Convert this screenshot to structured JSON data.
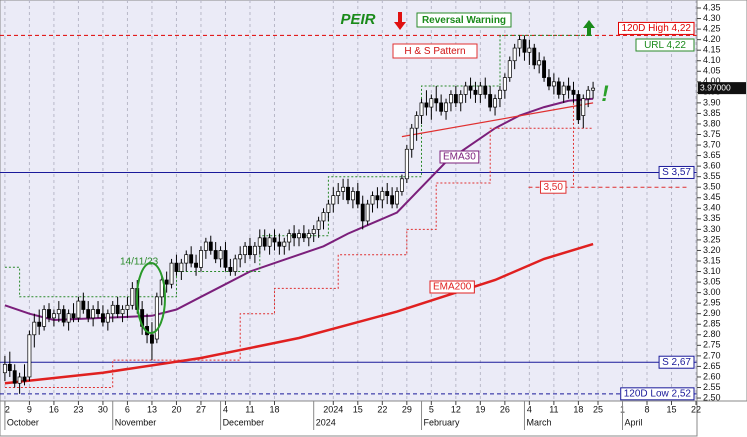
{
  "chart_data": {
    "type": "candlestick",
    "title": "PEIR",
    "xlim": [
      -1,
      141.2
    ],
    "ylim": [
      2.486,
      4.388
    ],
    "grid": "x",
    "up_color": "#ffffff",
    "down_color": "#000000",
    "xticks": [
      {
        "value": 0,
        "label": "2"
      },
      {
        "value": 5,
        "label": "9"
      },
      {
        "value": 10,
        "label": "16"
      },
      {
        "value": 15,
        "label": "23"
      },
      {
        "value": 20,
        "label": "30"
      },
      {
        "value": 25,
        "label": "6"
      },
      {
        "value": 30,
        "label": "13"
      },
      {
        "value": 35,
        "label": "20"
      },
      {
        "value": 40,
        "label": "27"
      },
      {
        "value": 45,
        "label": "4"
      },
      {
        "value": 50,
        "label": "11"
      },
      {
        "value": 55,
        "label": "18"
      },
      {
        "value": 67,
        "label": "2024"
      },
      {
        "value": 72,
        "label": "15"
      },
      {
        "value": 77,
        "label": "22"
      },
      {
        "value": 82,
        "label": "29"
      },
      {
        "value": 87,
        "label": "5"
      },
      {
        "value": 92,
        "label": "12"
      },
      {
        "value": 97,
        "label": "19"
      },
      {
        "value": 102,
        "label": "26"
      },
      {
        "value": 107,
        "label": "4"
      },
      {
        "value": 112,
        "label": "11"
      },
      {
        "value": 117,
        "label": "18"
      },
      {
        "value": 121,
        "label": "25"
      },
      {
        "value": 126,
        "label": "1"
      },
      {
        "value": 131,
        "label": "8"
      },
      {
        "value": 136,
        "label": "15"
      },
      {
        "value": 141,
        "label": "22"
      }
    ],
    "months": [
      {
        "value": 0,
        "label": "October"
      },
      {
        "value": 22,
        "label": "November"
      },
      {
        "value": 44,
        "label": "December"
      },
      {
        "value": 63,
        "label": "2024"
      },
      {
        "value": 85,
        "label": "February"
      },
      {
        "value": 106,
        "label": "March"
      },
      {
        "value": 126,
        "label": "April"
      }
    ],
    "yticks": [
      {
        "value": 2.5,
        "label": "2.50"
      },
      {
        "value": 2.55,
        "label": "2.55"
      },
      {
        "value": 2.6,
        "label": "2.60"
      },
      {
        "value": 2.65,
        "label": "2.65"
      },
      {
        "value": 2.7,
        "label": "2.70"
      },
      {
        "value": 2.75,
        "label": "2.75"
      },
      {
        "value": 2.8,
        "label": "2.80"
      },
      {
        "value": 2.85,
        "label": "2.85"
      },
      {
        "value": 2.9,
        "label": "2.90"
      },
      {
        "value": 2.95,
        "label": "2.95"
      },
      {
        "value": 3.0,
        "label": "3.00"
      },
      {
        "value": 3.05,
        "label": "3.05"
      },
      {
        "value": 3.1,
        "label": "3.10"
      },
      {
        "value": 3.15,
        "label": "3.15"
      },
      {
        "value": 3.2,
        "label": "3.20"
      },
      {
        "value": 3.25,
        "label": "3.25"
      },
      {
        "value": 3.3,
        "label": "3.30"
      },
      {
        "value": 3.35,
        "label": "3.35"
      },
      {
        "value": 3.4,
        "label": "3.40"
      },
      {
        "value": 3.45,
        "label": "3.45"
      },
      {
        "value": 3.5,
        "label": "3.50"
      },
      {
        "value": 3.55,
        "label": "3.55"
      },
      {
        "value": 3.6,
        "label": "3.60"
      },
      {
        "value": 3.65,
        "label": "3.65"
      },
      {
        "value": 3.7,
        "label": "3.70"
      },
      {
        "value": 3.75,
        "label": "3.75"
      },
      {
        "value": 3.8,
        "label": "3.80"
      },
      {
        "value": 3.85,
        "label": "3.85"
      },
      {
        "value": 3.9,
        "label": "3.90"
      },
      {
        "value": 3.95,
        "label": "3.95"
      },
      {
        "value": 4.0,
        "label": "4.00"
      },
      {
        "value": 4.05,
        "label": "4.05"
      },
      {
        "value": 4.1,
        "label": "4.10"
      },
      {
        "value": 4.15,
        "label": "4.15"
      },
      {
        "value": 4.2,
        "label": "4.20"
      },
      {
        "value": 4.25,
        "label": "4.25"
      },
      {
        "value": 4.3,
        "label": "4.30"
      },
      {
        "value": 4.35,
        "label": "4.35"
      }
    ],
    "candles": [
      [
        2.62,
        2.7,
        2.58,
        2.66
      ],
      [
        2.66,
        2.72,
        2.6,
        2.63
      ],
      [
        2.63,
        2.66,
        2.55,
        2.57
      ],
      [
        2.57,
        2.62,
        2.52,
        2.6
      ],
      [
        2.6,
        2.66,
        2.56,
        2.58
      ],
      [
        2.6,
        2.82,
        2.58,
        2.8
      ],
      [
        2.8,
        2.9,
        2.74,
        2.86
      ],
      [
        2.86,
        2.92,
        2.8,
        2.84
      ],
      [
        2.84,
        2.94,
        2.82,
        2.92
      ],
      [
        2.92,
        2.95,
        2.86,
        2.88
      ],
      [
        2.88,
        2.92,
        2.84,
        2.9
      ],
      [
        2.9,
        2.96,
        2.86,
        2.92
      ],
      [
        2.92,
        2.94,
        2.84,
        2.86
      ],
      [
        2.86,
        2.92,
        2.82,
        2.9
      ],
      [
        2.9,
        2.95,
        2.86,
        2.88
      ],
      [
        2.88,
        2.98,
        2.86,
        2.96
      ],
      [
        2.96,
        3.0,
        2.9,
        2.92
      ],
      [
        2.92,
        2.96,
        2.86,
        2.88
      ],
      [
        2.88,
        2.94,
        2.84,
        2.92
      ],
      [
        2.92,
        2.96,
        2.88,
        2.9
      ],
      [
        2.9,
        2.94,
        2.84,
        2.86
      ],
      [
        2.86,
        2.92,
        2.82,
        2.9
      ],
      [
        2.9,
        2.96,
        2.86,
        2.94
      ],
      [
        2.94,
        2.98,
        2.88,
        2.9
      ],
      [
        2.9,
        2.94,
        2.86,
        2.92
      ],
      [
        2.92,
        2.98,
        2.88,
        2.94
      ],
      [
        2.94,
        3.05,
        2.92,
        3.02
      ],
      [
        3.02,
        3.06,
        2.9,
        2.92
      ],
      [
        2.92,
        2.96,
        2.8,
        2.84
      ],
      [
        2.84,
        2.9,
        2.76,
        2.8
      ],
      [
        2.8,
        2.86,
        2.68,
        2.76
      ],
      [
        2.78,
        3.0,
        2.76,
        2.98
      ],
      [
        2.98,
        3.08,
        2.94,
        3.06
      ],
      [
        3.06,
        3.1,
        3.0,
        3.04
      ],
      [
        3.04,
        3.16,
        3.02,
        3.14
      ],
      [
        3.14,
        3.18,
        3.08,
        3.1
      ],
      [
        3.1,
        3.16,
        3.06,
        3.14
      ],
      [
        3.14,
        3.2,
        3.1,
        3.18
      ],
      [
        3.18,
        3.22,
        3.12,
        3.14
      ],
      [
        3.14,
        3.18,
        3.08,
        3.12
      ],
      [
        3.12,
        3.22,
        3.1,
        3.2
      ],
      [
        3.2,
        3.26,
        3.16,
        3.24
      ],
      [
        3.24,
        3.27,
        3.18,
        3.2
      ],
      [
        3.2,
        3.24,
        3.14,
        3.16
      ],
      [
        3.16,
        3.22,
        3.12,
        3.2
      ],
      [
        3.2,
        3.24,
        3.1,
        3.12
      ],
      [
        3.12,
        3.16,
        3.08,
        3.1
      ],
      [
        3.1,
        3.18,
        3.08,
        3.16
      ],
      [
        3.16,
        3.22,
        3.12,
        3.18
      ],
      [
        3.18,
        3.24,
        3.14,
        3.22
      ],
      [
        3.22,
        3.26,
        3.16,
        3.18
      ],
      [
        3.18,
        3.24,
        3.14,
        3.22
      ],
      [
        3.22,
        3.3,
        3.18,
        3.26
      ],
      [
        3.26,
        3.3,
        3.2,
        3.22
      ],
      [
        3.22,
        3.28,
        3.18,
        3.26
      ],
      [
        3.26,
        3.3,
        3.2,
        3.24
      ],
      [
        3.24,
        3.28,
        3.18,
        3.22
      ],
      [
        3.22,
        3.26,
        3.18,
        3.24
      ],
      [
        3.24,
        3.3,
        3.2,
        3.28
      ],
      [
        3.28,
        3.32,
        3.22,
        3.26
      ],
      [
        3.26,
        3.3,
        3.22,
        3.28
      ],
      [
        3.28,
        3.32,
        3.24,
        3.26
      ],
      [
        3.26,
        3.3,
        3.22,
        3.28
      ],
      [
        3.28,
        3.32,
        3.24,
        3.3
      ],
      [
        3.3,
        3.36,
        3.26,
        3.34
      ],
      [
        3.34,
        3.4,
        3.3,
        3.38
      ],
      [
        3.38,
        3.44,
        3.34,
        3.42
      ],
      [
        3.42,
        3.5,
        3.38,
        3.46
      ],
      [
        3.46,
        3.52,
        3.42,
        3.48
      ],
      [
        3.48,
        3.54,
        3.44,
        3.5
      ],
      [
        3.5,
        3.54,
        3.42,
        3.44
      ],
      [
        3.44,
        3.5,
        3.4,
        3.48
      ],
      [
        3.48,
        3.52,
        3.4,
        3.42
      ],
      [
        3.42,
        3.46,
        3.3,
        3.34
      ],
      [
        3.34,
        3.44,
        3.32,
        3.42
      ],
      [
        3.42,
        3.48,
        3.38,
        3.46
      ],
      [
        3.46,
        3.5,
        3.4,
        3.44
      ],
      [
        3.44,
        3.5,
        3.4,
        3.48
      ],
      [
        3.48,
        3.52,
        3.42,
        3.46
      ],
      [
        3.46,
        3.5,
        3.4,
        3.42
      ],
      [
        3.42,
        3.5,
        3.4,
        3.48
      ],
      [
        3.48,
        3.56,
        3.46,
        3.54
      ],
      [
        3.54,
        3.7,
        3.52,
        3.68
      ],
      [
        3.68,
        3.8,
        3.64,
        3.78
      ],
      [
        3.78,
        3.86,
        3.72,
        3.84
      ],
      [
        3.84,
        3.92,
        3.8,
        3.9
      ],
      [
        3.9,
        3.96,
        3.84,
        3.88
      ],
      [
        3.88,
        3.94,
        3.82,
        3.92
      ],
      [
        3.92,
        3.98,
        3.86,
        3.9
      ],
      [
        3.9,
        3.94,
        3.84,
        3.86
      ],
      [
        3.86,
        3.92,
        3.82,
        3.9
      ],
      [
        3.9,
        3.96,
        3.86,
        3.94
      ],
      [
        3.94,
        3.98,
        3.88,
        3.9
      ],
      [
        3.9,
        3.96,
        3.86,
        3.94
      ],
      [
        3.94,
        4.0,
        3.9,
        3.98
      ],
      [
        3.98,
        4.02,
        3.92,
        3.96
      ],
      [
        3.96,
        4.0,
        3.9,
        3.94
      ],
      [
        3.94,
        4.0,
        3.9,
        3.98
      ],
      [
        3.98,
        4.02,
        3.92,
        3.94
      ],
      [
        3.94,
        3.98,
        3.86,
        3.88
      ],
      [
        3.88,
        3.94,
        3.84,
        3.92
      ],
      [
        3.92,
        3.98,
        3.88,
        3.96
      ],
      [
        3.96,
        4.04,
        3.92,
        4.02
      ],
      [
        4.02,
        4.12,
        4.0,
        4.1
      ],
      [
        4.1,
        4.18,
        4.06,
        4.16
      ],
      [
        4.16,
        4.22,
        4.12,
        4.2
      ],
      [
        4.2,
        4.22,
        4.1,
        4.14
      ],
      [
        4.14,
        4.2,
        4.08,
        4.16
      ],
      [
        4.16,
        4.18,
        4.06,
        4.08
      ],
      [
        4.08,
        4.14,
        4.04,
        4.1
      ],
      [
        4.1,
        4.12,
        4.0,
        4.02
      ],
      [
        4.02,
        4.06,
        3.96,
        3.98
      ],
      [
        3.98,
        4.04,
        3.94,
        4.0
      ],
      [
        4.0,
        4.02,
        3.92,
        3.94
      ],
      [
        3.94,
        4.0,
        3.9,
        3.98
      ],
      [
        3.98,
        4.02,
        3.92,
        3.96
      ],
      [
        3.96,
        4.0,
        3.9,
        3.94
      ],
      [
        3.94,
        3.96,
        3.8,
        3.82
      ],
      [
        3.84,
        3.94,
        3.78,
        3.92
      ],
      [
        3.92,
        3.98,
        3.88,
        3.96
      ],
      [
        3.96,
        4.0,
        3.92,
        3.97
      ]
    ],
    "lines": [
      {
        "name": "EMA30",
        "color": "#7b1f7b",
        "width": 2,
        "x": [
          0,
          5,
          10,
          20,
          30,
          35,
          40,
          45,
          50,
          55,
          60,
          65,
          70,
          75,
          80,
          85,
          90,
          95,
          100,
          105,
          110,
          115,
          120
        ],
        "values": [
          2.94,
          2.9,
          2.87,
          2.88,
          2.89,
          2.92,
          2.98,
          3.04,
          3.1,
          3.14,
          3.18,
          3.22,
          3.28,
          3.33,
          3.38,
          3.5,
          3.62,
          3.7,
          3.78,
          3.84,
          3.88,
          3.91,
          3.92
        ]
      },
      {
        "name": "EMA200",
        "color": "#e02020",
        "width": 2.5,
        "x": [
          0,
          20,
          40,
          60,
          80,
          100,
          110,
          120
        ],
        "values": [
          2.57,
          2.62,
          2.69,
          2.785,
          2.91,
          3.06,
          3.16,
          3.23
        ]
      },
      {
        "color": "#e03030",
        "width": 1,
        "dash": "2,2",
        "x": [
          0,
          22,
          22,
          48,
          48,
          55,
          55,
          68,
          68,
          82,
          82,
          88,
          88,
          99,
          99,
          120
        ],
        "values": [
          2.55,
          2.55,
          2.68,
          2.68,
          2.9,
          2.9,
          3.02,
          3.02,
          3.18,
          3.18,
          3.3,
          3.3,
          3.52,
          3.52,
          3.78,
          3.78
        ]
      },
      {
        "color": "#2a8a2a",
        "width": 1,
        "dash": "2,2",
        "x": [
          0,
          3,
          3,
          35,
          35,
          52,
          52,
          66,
          66,
          85,
          85,
          101,
          101,
          120
        ],
        "values": [
          3.12,
          3.12,
          2.98,
          2.98,
          3.1,
          3.1,
          3.27,
          3.27,
          3.55,
          3.55,
          3.98,
          3.98,
          4.22,
          4.22
        ]
      },
      {
        "color": "#e03030",
        "width": 1.2,
        "x": [
          81,
          120
        ],
        "values": [
          3.74,
          3.9
        ]
      }
    ],
    "levels": [
      {
        "value": 4.22,
        "label": "120D High 4,22",
        "color": "#e00000",
        "dash": "4,3"
      },
      {
        "value": 3.57,
        "label": "S 3,57",
        "color": "#1a1a9a"
      },
      {
        "value": 2.67,
        "label": "S 2,67",
        "color": "#1a1a9a"
      },
      {
        "value": 2.52,
        "label": "120D Low 2,52",
        "color": "#1a1a9a",
        "dash": "4,3"
      }
    ],
    "stop": {
      "value": 3.5,
      "label": "3,50",
      "x": 116,
      "color": "#e03030"
    },
    "last_price": {
      "value": 3.97,
      "label": "3.97000"
    },
    "signal": "Reversal Warning",
    "pattern": "H & S Pattern",
    "url": "URL 4,22",
    "date_note": "14/11/23",
    "alert": "!"
  }
}
